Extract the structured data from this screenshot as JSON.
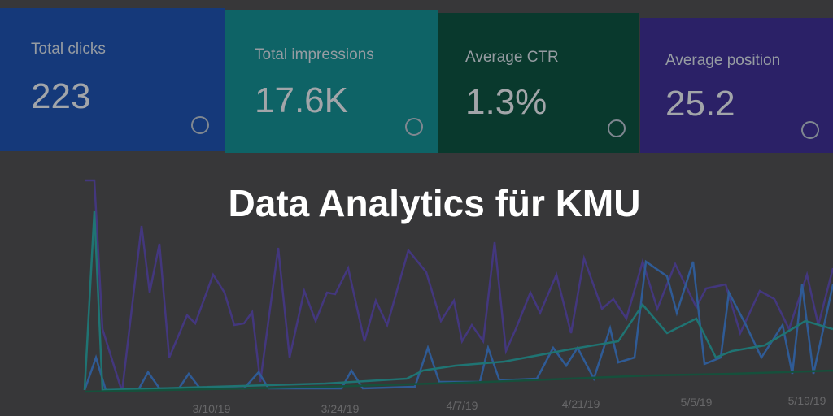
{
  "cards": [
    {
      "label": "Total clicks",
      "value": "223"
    },
    {
      "label": "Total impressions",
      "value": "17.6K"
    },
    {
      "label": "Average CTR",
      "value": "1.3%"
    },
    {
      "label": "Average position",
      "value": "25.2"
    }
  ],
  "title": "Data Analytics für KMU",
  "x_labels": [
    "3/10/19",
    "3/24/19",
    "4/7/19",
    "4/21/19",
    "5/5/19",
    "5/19/19"
  ]
}
